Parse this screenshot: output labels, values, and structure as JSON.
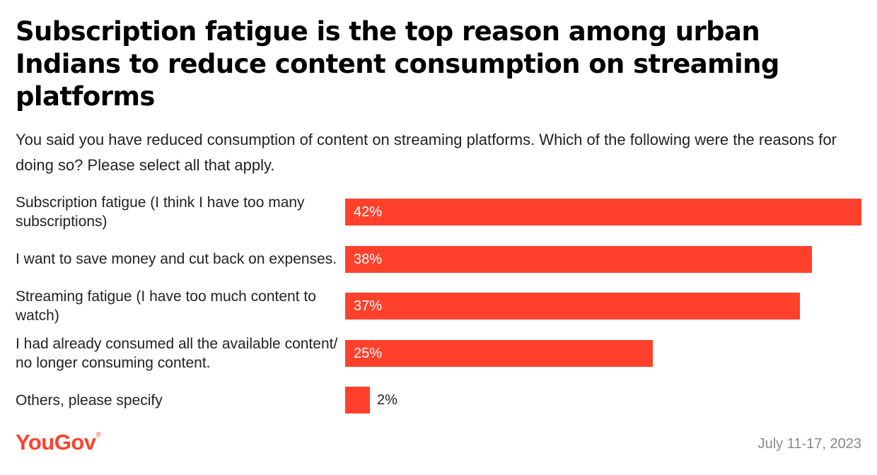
{
  "title": "Subscription fatigue is the top reason among urban Indians to reduce content consumption on streaming platforms",
  "subtitle": "You said you have reduced consumption of content on streaming platforms. Which of the following were the reasons for doing so? Please select all that apply.",
  "colors": {
    "bar": "#ff412c",
    "brand": "#ff412c"
  },
  "chart_data": {
    "type": "bar",
    "orientation": "horizontal",
    "categories": [
      "Subscription fatigue (I think I have too many subscriptions)",
      "I want to save money and cut back on expenses.",
      "Streaming fatigue (I have too much content to watch)",
      "I had already consumed all the available content/ no longer consuming content.",
      "Others, please specify"
    ],
    "values": [
      42,
      38,
      37,
      25,
      2
    ],
    "value_labels": [
      "42%",
      "38%",
      "37%",
      "25%",
      "2%"
    ],
    "unit": "%",
    "xlim": [
      0,
      42
    ],
    "grid": false
  },
  "footer": {
    "brand": "YouGov",
    "registered": "®",
    "date": "July 11-17, 2023"
  }
}
